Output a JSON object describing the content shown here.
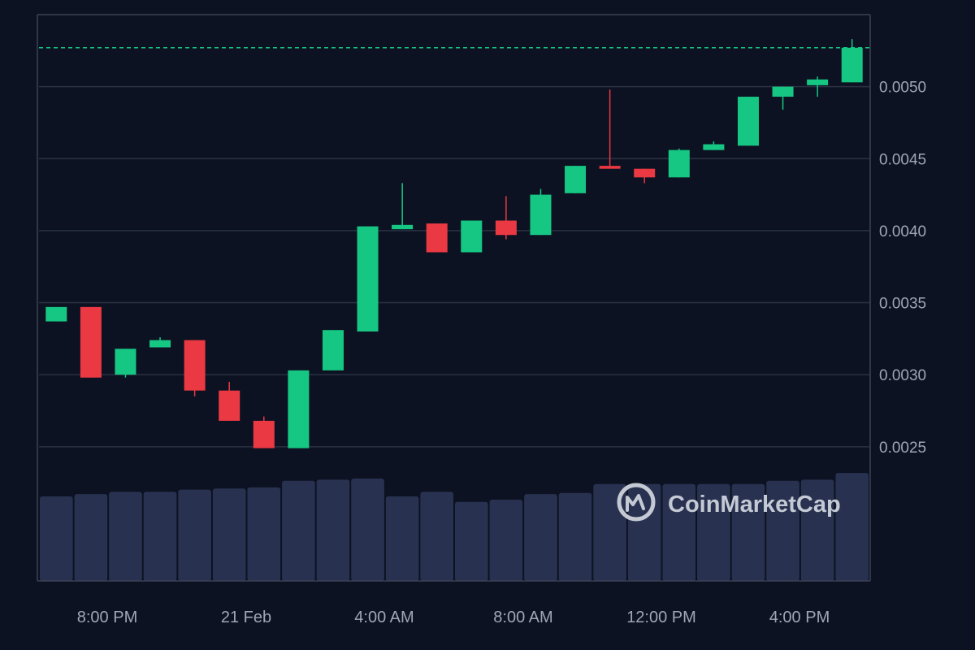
{
  "chart_data": {
    "type": "candlestick",
    "title": "",
    "xlabel": "",
    "ylabel": "",
    "ylim": [
      0.0022,
      0.0055
    ],
    "y_ticks": [
      "0.0025",
      "0.0030",
      "0.0035",
      "0.0040",
      "0.0045",
      "0.0050"
    ],
    "x_ticks": [
      "8:00 PM",
      "21 Feb",
      "4:00 AM",
      "8:00 AM",
      "12:00 PM",
      "4:00 PM"
    ],
    "current_price": 0.00527,
    "grid": true,
    "colors": {
      "up": "#16c784",
      "down": "#ea3943",
      "volume": "#283250",
      "grid": "#2a3143",
      "axis": "#3b4254",
      "price_line": "#16c784",
      "background": "#0c1221"
    },
    "candles": [
      {
        "open": 0.00337,
        "high": 0.00347,
        "low": 0.00337,
        "close": 0.00347
      },
      {
        "open": 0.00347,
        "high": 0.00347,
        "low": 0.00298,
        "close": 0.00298
      },
      {
        "open": 0.003,
        "high": 0.00318,
        "low": 0.00298,
        "close": 0.00318
      },
      {
        "open": 0.00319,
        "high": 0.00326,
        "low": 0.00319,
        "close": 0.00324
      },
      {
        "open": 0.00324,
        "high": 0.00324,
        "low": 0.00285,
        "close": 0.00289
      },
      {
        "open": 0.00289,
        "high": 0.00295,
        "low": 0.00268,
        "close": 0.00268
      },
      {
        "open": 0.00268,
        "high": 0.00271,
        "low": 0.00249,
        "close": 0.00249
      },
      {
        "open": 0.00249,
        "high": 0.00303,
        "low": 0.00249,
        "close": 0.00303
      },
      {
        "open": 0.00303,
        "high": 0.00331,
        "low": 0.00303,
        "close": 0.00331
      },
      {
        "open": 0.0033,
        "high": 0.00403,
        "low": 0.0033,
        "close": 0.00403
      },
      {
        "open": 0.00401,
        "high": 0.00433,
        "low": 0.00401,
        "close": 0.00404
      },
      {
        "open": 0.00405,
        "high": 0.00405,
        "low": 0.00385,
        "close": 0.00385
      },
      {
        "open": 0.00385,
        "high": 0.00407,
        "low": 0.00385,
        "close": 0.00407
      },
      {
        "open": 0.00407,
        "high": 0.00424,
        "low": 0.00394,
        "close": 0.00397
      },
      {
        "open": 0.00397,
        "high": 0.00429,
        "low": 0.00397,
        "close": 0.00425
      },
      {
        "open": 0.00426,
        "high": 0.00445,
        "low": 0.00426,
        "close": 0.00445
      },
      {
        "open": 0.00445,
        "high": 0.00498,
        "low": 0.00443,
        "close": 0.00443
      },
      {
        "open": 0.00443,
        "high": 0.00443,
        "low": 0.00433,
        "close": 0.00437
      },
      {
        "open": 0.00437,
        "high": 0.00457,
        "low": 0.00437,
        "close": 0.00456
      },
      {
        "open": 0.00456,
        "high": 0.00462,
        "low": 0.00456,
        "close": 0.0046
      },
      {
        "open": 0.00459,
        "high": 0.00493,
        "low": 0.00459,
        "close": 0.00493
      },
      {
        "open": 0.00493,
        "high": 0.005,
        "low": 0.00484,
        "close": 0.005
      },
      {
        "open": 0.00501,
        "high": 0.00507,
        "low": 0.00493,
        "close": 0.00505
      },
      {
        "open": 0.00503,
        "high": 0.00533,
        "low": 0.00503,
        "close": 0.00527
      }
    ],
    "volume_ylim": [
      0,
      100
    ],
    "volume": [
      76,
      78,
      80,
      80,
      82,
      83,
      84,
      90,
      91,
      92,
      76,
      80,
      71,
      73,
      78,
      79,
      87,
      87,
      87,
      87,
      87,
      90,
      91,
      97
    ]
  },
  "watermark": {
    "text": "CoinMarketCap",
    "icon": "coinmarketcap-logo-icon"
  }
}
